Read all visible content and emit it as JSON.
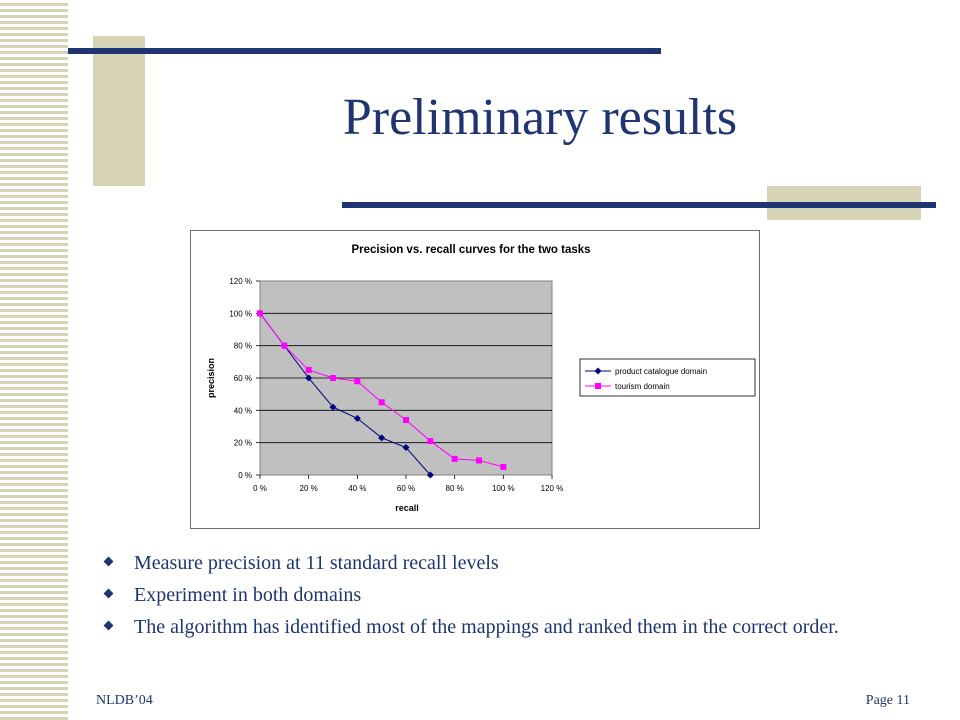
{
  "slide": {
    "title": "Preliminary results",
    "bullets": [
      "Measure precision at 11 standard recall levels",
      "Experiment in both domains",
      "The algorithm has identified most of the mappings and ranked them in the correct order."
    ],
    "footer_left": "NLDB’04",
    "footer_right": "Page 11"
  },
  "colors": {
    "title": "#1f3470",
    "accent_block": "#d6d4b4",
    "bar": "#1f3470",
    "plot_bg": "#c0c0c0",
    "series_1": "#000080",
    "series_2": "#ff00ff"
  },
  "chart_data": {
    "type": "line",
    "title": "Precision vs. recall curves for the two tasks",
    "xlabel": "recall",
    "ylabel": "precision",
    "xlim": [
      0,
      120
    ],
    "ylim": [
      0,
      120
    ],
    "x_ticks": [
      "0 %",
      "20 %",
      "40 %",
      "60 %",
      "80 %",
      "100 %",
      "120 %"
    ],
    "y_ticks": [
      "0 %",
      "20 %",
      "40 %",
      "60 %",
      "80 %",
      "100 %",
      "120 %"
    ],
    "grid": "horizontal",
    "legend_position": "right",
    "series": [
      {
        "name": "product catalogue domain",
        "marker": "diamond",
        "color": "#000080",
        "x": [
          0,
          10,
          20,
          30,
          40,
          50,
          60,
          70
        ],
        "y": [
          100,
          80,
          60,
          42,
          35,
          23,
          17,
          0
        ]
      },
      {
        "name": "tourism domain",
        "marker": "square",
        "color": "#ff00ff",
        "x": [
          0,
          10,
          20,
          30,
          40,
          50,
          60,
          70,
          80,
          90,
          100
        ],
        "y": [
          100,
          80,
          65,
          60,
          58,
          45,
          34,
          21,
          10,
          9,
          5
        ]
      }
    ]
  }
}
